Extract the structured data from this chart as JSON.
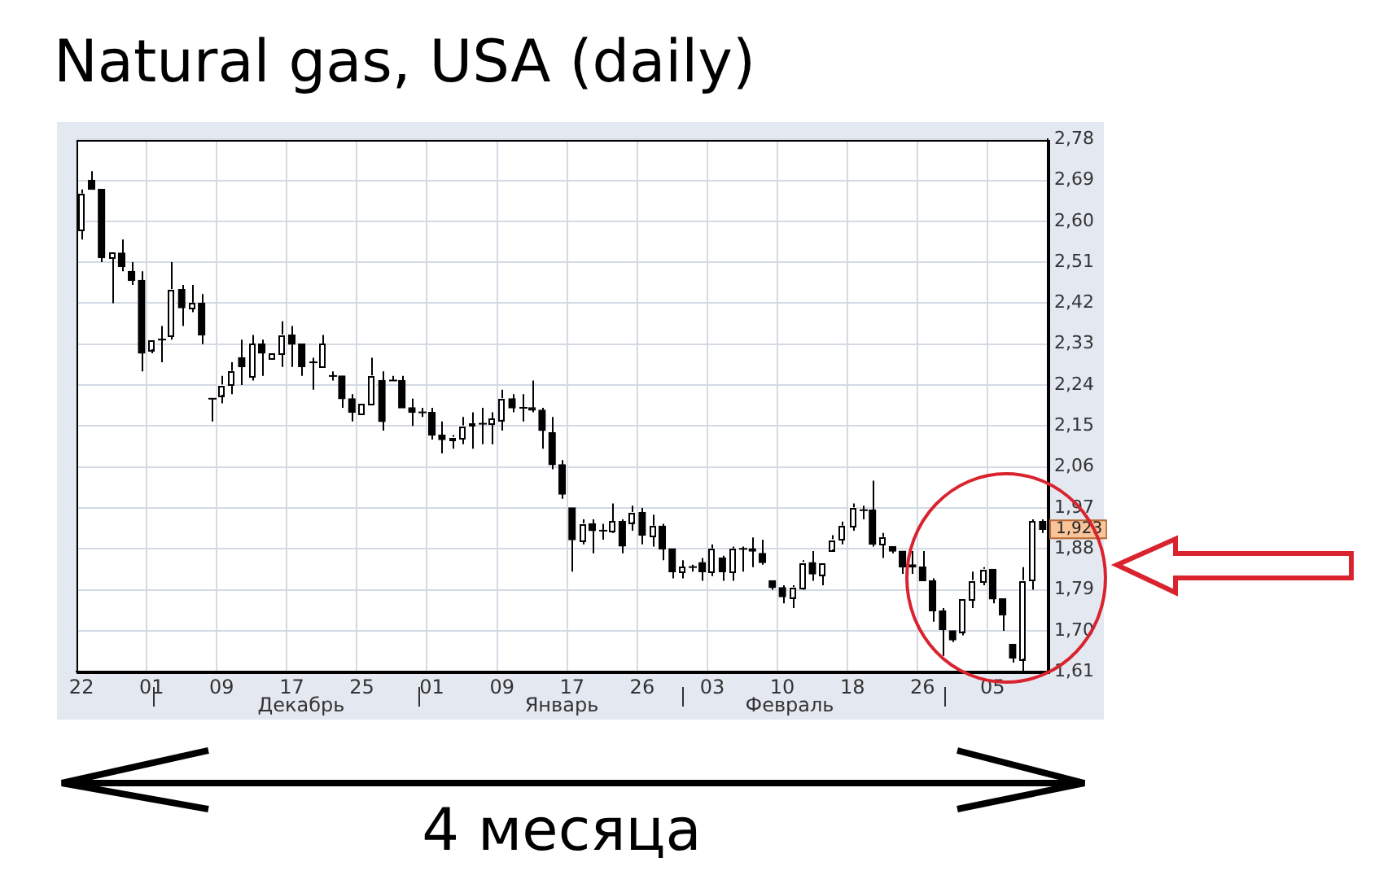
{
  "chart_data": {
    "type": "candlestick",
    "title": "Natural gas, USA (daily)",
    "categories": [
      "22",
      null,
      null,
      null,
      null,
      null,
      null,
      "01",
      null,
      null,
      null,
      null,
      null,
      null,
      "09",
      null,
      null,
      null,
      null,
      null,
      null,
      "17",
      null,
      null,
      null,
      null,
      null,
      null,
      "25",
      null,
      null,
      null,
      null,
      null,
      null,
      "01",
      null,
      null,
      null,
      null,
      null,
      null,
      "09",
      null,
      null,
      null,
      null,
      null,
      null,
      "17",
      null,
      null,
      null,
      null,
      null,
      null,
      "26",
      null,
      null,
      null,
      null,
      null,
      null,
      "03",
      null,
      null,
      null,
      null,
      null,
      null,
      "10",
      null,
      null,
      null,
      null,
      null,
      null,
      "18",
      null,
      null,
      null,
      null,
      null,
      null,
      "26",
      null,
      null,
      null,
      null,
      null,
      null,
      "05",
      null,
      null,
      null,
      null,
      null
    ],
    "ohlc": [
      [
        2.58,
        2.67,
        2.56,
        2.66
      ],
      [
        2.69,
        2.71,
        2.67,
        2.67
      ],
      [
        2.67,
        2.67,
        2.51,
        2.52
      ],
      [
        2.52,
        2.53,
        2.42,
        2.53
      ],
      [
        2.53,
        2.56,
        2.49,
        2.5
      ],
      [
        2.49,
        2.51,
        2.46,
        2.47
      ],
      [
        2.47,
        2.49,
        2.27,
        2.31
      ],
      [
        2.32,
        2.34,
        2.31,
        2.34
      ],
      [
        2.34,
        2.37,
        2.29,
        2.34
      ],
      [
        2.35,
        2.51,
        2.34,
        2.45
      ],
      [
        2.45,
        2.46,
        2.37,
        2.41
      ],
      [
        2.41,
        2.46,
        2.4,
        2.42
      ],
      [
        2.42,
        2.44,
        2.33,
        2.35
      ],
      [
        2.21,
        2.21,
        2.16,
        2.21
      ],
      [
        2.22,
        2.26,
        2.2,
        2.24
      ],
      [
        2.24,
        2.29,
        2.22,
        2.27
      ],
      [
        2.3,
        2.34,
        2.24,
        2.28
      ],
      [
        2.26,
        2.35,
        2.25,
        2.33
      ],
      [
        2.33,
        2.34,
        2.26,
        2.31
      ],
      [
        2.3,
        2.31,
        2.3,
        2.31
      ],
      [
        2.31,
        2.38,
        2.28,
        2.35
      ],
      [
        2.35,
        2.37,
        2.28,
        2.33
      ],
      [
        2.33,
        2.33,
        2.26,
        2.28
      ],
      [
        2.29,
        2.3,
        2.23,
        2.29
      ],
      [
        2.28,
        2.35,
        2.28,
        2.33
      ],
      [
        2.26,
        2.27,
        2.25,
        2.26
      ],
      [
        2.26,
        2.26,
        2.19,
        2.21
      ],
      [
        2.21,
        2.22,
        2.16,
        2.18
      ],
      [
        2.18,
        2.2,
        2.18,
        2.2
      ],
      [
        2.2,
        2.3,
        2.2,
        2.26
      ],
      [
        2.25,
        2.27,
        2.14,
        2.16
      ],
      [
        2.25,
        2.26,
        2.25,
        2.25
      ],
      [
        2.25,
        2.26,
        2.19,
        2.19
      ],
      [
        2.19,
        2.21,
        2.15,
        2.18
      ],
      [
        2.18,
        2.19,
        2.17,
        2.18
      ],
      [
        2.18,
        2.19,
        2.12,
        2.13
      ],
      [
        2.13,
        2.16,
        2.09,
        2.12
      ],
      [
        2.12,
        2.13,
        2.1,
        2.125
      ],
      [
        2.125,
        2.17,
        2.11,
        2.15
      ],
      [
        2.15,
        2.18,
        2.1,
        2.155
      ],
      [
        2.155,
        2.19,
        2.11,
        2.155
      ],
      [
        2.155,
        2.18,
        2.11,
        2.165
      ],
      [
        2.165,
        2.23,
        2.14,
        2.21
      ],
      [
        2.21,
        2.22,
        2.18,
        2.19
      ],
      [
        2.19,
        2.22,
        2.16,
        2.19
      ],
      [
        2.19,
        2.25,
        2.18,
        2.185
      ],
      [
        2.185,
        2.19,
        2.1,
        2.14
      ],
      [
        2.135,
        2.17,
        2.055,
        2.065
      ],
      [
        2.065,
        2.075,
        1.99,
        2.0
      ],
      [
        1.97,
        1.97,
        1.83,
        1.9
      ],
      [
        1.9,
        1.945,
        1.89,
        1.935
      ],
      [
        1.935,
        1.945,
        1.87,
        1.92
      ],
      [
        1.92,
        1.935,
        1.9,
        1.92
      ],
      [
        1.92,
        1.98,
        1.915,
        1.94
      ],
      [
        1.94,
        1.945,
        1.87,
        1.886
      ],
      [
        1.94,
        1.975,
        1.92,
        1.96
      ],
      [
        1.96,
        1.97,
        1.89,
        1.91
      ],
      [
        1.91,
        1.955,
        1.885,
        1.93
      ],
      [
        1.93,
        1.935,
        1.855,
        1.88
      ],
      [
        1.88,
        1.88,
        1.815,
        1.83
      ],
      [
        1.83,
        1.855,
        1.815,
        1.84
      ],
      [
        1.84,
        1.845,
        1.83,
        1.84
      ],
      [
        1.85,
        1.86,
        1.81,
        1.83
      ],
      [
        1.83,
        1.89,
        1.82,
        1.88
      ],
      [
        1.86,
        1.865,
        1.81,
        1.83
      ],
      [
        1.83,
        1.885,
        1.81,
        1.88
      ],
      [
        1.88,
        1.885,
        1.83,
        1.88
      ],
      [
        1.88,
        1.905,
        1.84,
        1.875
      ],
      [
        1.87,
        1.9,
        1.845,
        1.85
      ],
      [
        1.81,
        1.81,
        1.79,
        1.795
      ],
      [
        1.795,
        1.8,
        1.76,
        1.775
      ],
      [
        1.775,
        1.8,
        1.75,
        1.795
      ],
      [
        1.795,
        1.855,
        1.79,
        1.85
      ],
      [
        1.85,
        1.875,
        1.81,
        1.825
      ],
      [
        1.825,
        1.85,
        1.8,
        1.85
      ],
      [
        1.88,
        1.91,
        1.875,
        1.9
      ],
      [
        1.9,
        1.94,
        1.89,
        1.93
      ],
      [
        1.93,
        1.98,
        1.92,
        1.97
      ],
      [
        1.965,
        1.975,
        1.945,
        1.965
      ],
      [
        1.965,
        2.03,
        1.885,
        1.89
      ],
      [
        1.89,
        1.915,
        1.86,
        1.905
      ],
      [
        1.885,
        1.885,
        1.87,
        1.875
      ],
      [
        1.875,
        1.875,
        1.825,
        1.84
      ],
      [
        1.845,
        1.875,
        1.825,
        1.84
      ],
      [
        1.84,
        1.875,
        1.81,
        1.81
      ],
      [
        1.81,
        1.815,
        1.72,
        1.744
      ],
      [
        1.744,
        1.75,
        1.645,
        1.703
      ],
      [
        1.7,
        1.7,
        1.675,
        1.68
      ],
      [
        1.7,
        1.77,
        1.69,
        1.77
      ],
      [
        1.77,
        1.83,
        1.75,
        1.81
      ],
      [
        1.81,
        1.84,
        1.8,
        1.835
      ],
      [
        1.835,
        1.835,
        1.76,
        1.77
      ],
      [
        1.77,
        1.77,
        1.7,
        1.735
      ],
      [
        1.67,
        1.67,
        1.63,
        1.64
      ],
      [
        1.64,
        1.84,
        1.61,
        1.81
      ],
      [
        1.81,
        1.945,
        1.79,
        1.94
      ],
      [
        1.94,
        1.945,
        1.915,
        1.923
      ]
    ],
    "color": "#000000",
    "colors": [
      "#ffffff",
      "#000000",
      "#000000",
      "#ffffff",
      "#000000",
      "#000000",
      "#000000",
      "#ffffff",
      "#000000",
      "#ffffff",
      "#000000",
      "#ffffff",
      "#000000",
      "#000000",
      "#ffffff",
      "#ffffff",
      "#000000",
      "#ffffff",
      "#000000",
      "#ffffff",
      "#ffffff",
      "#000000",
      "#000000",
      "#000000",
      "#ffffff",
      "#000000",
      "#000000",
      "#000000",
      "#ffffff",
      "#ffffff",
      "#000000",
      "#000000",
      "#000000",
      "#000000",
      "#000000",
      "#000000",
      "#000000",
      "#ffffff",
      "#ffffff",
      "#ffffff",
      "#000000",
      "#ffffff",
      "#ffffff",
      "#000000",
      "#000000",
      "#000000",
      "#000000",
      "#000000",
      "#000000",
      "#000000",
      "#ffffff",
      "#000000",
      "#000000",
      "#ffffff",
      "#000000",
      "#ffffff",
      "#000000",
      "#ffffff",
      "#000000",
      "#000000",
      "#ffffff",
      "#000000",
      "#000000",
      "#ffffff",
      "#000000",
      "#ffffff",
      "#000000",
      "#000000",
      "#000000",
      "#000000",
      "#000000",
      "#ffffff",
      "#ffffff",
      "#000000",
      "#ffffff",
      "#ffffff",
      "#ffffff",
      "#ffffff",
      "#000000",
      "#000000",
      "#ffffff",
      "#000000",
      "#000000",
      "#000000",
      "#000000",
      "#000000",
      "#000000",
      "#000000",
      "#ffffff",
      "#ffffff",
      "#ffffff",
      "#000000",
      "#000000",
      "#000000",
      "#ffffff",
      "#ffffff",
      "#000000"
    ],
    "ylim": [
      1.61,
      2.78
    ],
    "yticks": [
      {
        "value": 1.61,
        "label": "1,61"
      },
      {
        "value": 1.7,
        "label": "1,70"
      },
      {
        "value": 1.79,
        "label": "1,79"
      },
      {
        "value": 1.88,
        "label": "1,88"
      },
      {
        "value": 1.97,
        "label": "1,97"
      },
      {
        "value": 2.06,
        "label": "2,06"
      },
      {
        "value": 2.15,
        "label": "2,15"
      },
      {
        "value": 2.24,
        "label": "2,24"
      },
      {
        "value": 2.33,
        "label": "2,33"
      },
      {
        "value": 2.42,
        "label": "2,42"
      },
      {
        "value": 2.51,
        "label": "2,51"
      },
      {
        "value": 2.6,
        "label": "2,60"
      },
      {
        "value": 2.69,
        "label": "2,69"
      },
      {
        "value": 2.78,
        "label": "2,78"
      }
    ],
    "grid": true,
    "legend": false,
    "annotations": [
      "Декабрь",
      "Январь",
      "Февраль",
      {
        "text": "1,923",
        "y": 1.923
      },
      "4 месяца"
    ]
  }
}
